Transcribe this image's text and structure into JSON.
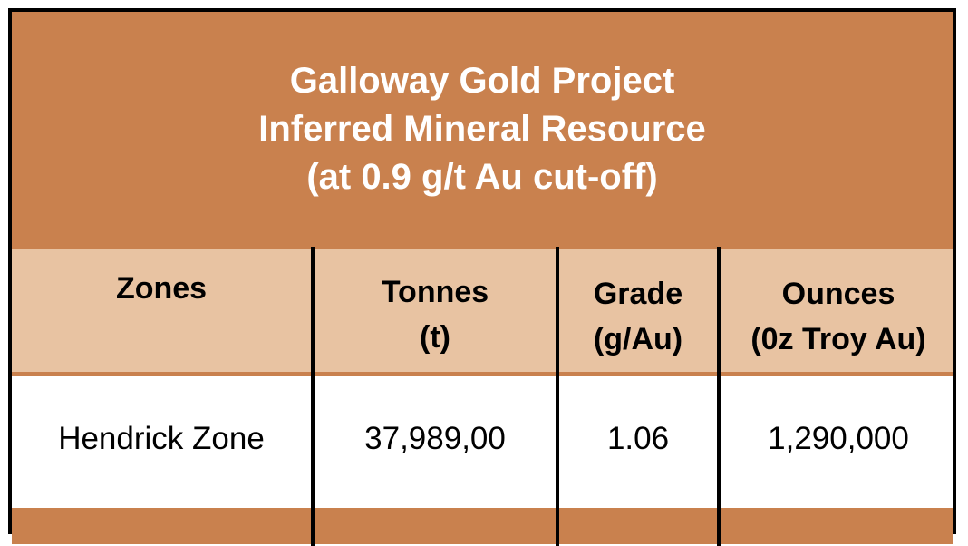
{
  "title": {
    "line1": "Galloway Gold Project",
    "line2": "Inferred Mineral Resource",
    "line3": "(at 0.9 g/t Au cut-off)"
  },
  "columns": [
    {
      "line1": "Zones",
      "line2": ""
    },
    {
      "line1": "Tonnes",
      "line2": "(t)"
    },
    {
      "line1": "Grade",
      "line2": "(g/Au)"
    },
    {
      "line1": "Ounces",
      "line2": "(0z Troy Au)"
    }
  ],
  "rows": [
    {
      "zone": "Hendrick Zone",
      "tonnes": "37,989,00",
      "grade": "1.06",
      "ounces": "1,290,000"
    }
  ],
  "colors": {
    "title_bg": "#c9814e",
    "header_bg": "#e8c3a2",
    "title_text": "#ffffff",
    "border": "#000000"
  }
}
